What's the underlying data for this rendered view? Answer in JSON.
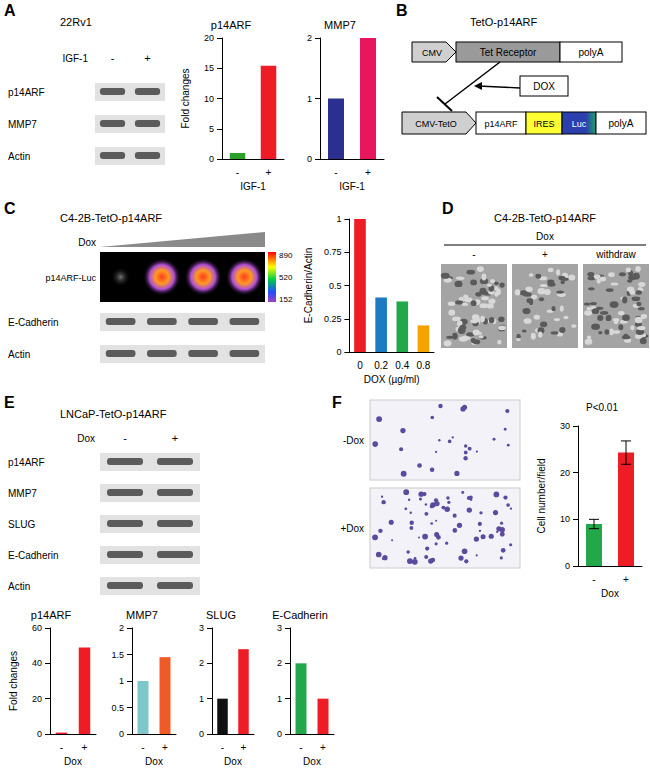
{
  "panels": {
    "A": {
      "letter": "A",
      "title": "22Rv1",
      "condition": "IGF-1",
      "lanes": [
        "-",
        "+"
      ],
      "blots": [
        "p14ARF",
        "MMP7",
        "Actin"
      ]
    },
    "B": {
      "letter": "B",
      "title": "TetO-p14ARF",
      "top_row": [
        "CMV",
        "Tet Receptor",
        "polyA"
      ],
      "inducer": "DOX",
      "bottom_row": [
        "CMV-TetO",
        "p14ARF",
        "IRES",
        "Luc",
        "polyA"
      ]
    },
    "C": {
      "letter": "C",
      "title": "C4-2B-TetO-p14ARF",
      "condition": "Dox",
      "image_label": "p14ARF-Luc",
      "colorbar_ticks": [
        890,
        520,
        152
      ],
      "lanes": 4,
      "blots": [
        "E-Cadherin",
        "Actin"
      ]
    },
    "D": {
      "letter": "D",
      "title": "C4-2B-TetO-p14ARF",
      "condition": "Dox",
      "lanes": [
        "-",
        "+",
        "withdraw"
      ]
    },
    "E": {
      "letter": "E",
      "title": "LNCaP-TetO-p14ARF",
      "condition": "Dox",
      "lanes": [
        "-",
        "+"
      ],
      "blots": [
        "p14ARF",
        "MMP7",
        "SLUG",
        "E-Cadherin",
        "Actin"
      ]
    },
    "F": {
      "letter": "F",
      "rows": [
        "-Dox",
        "+Dox"
      ]
    }
  },
  "chart_data": [
    {
      "type": "bar",
      "title": "p14ARF",
      "y_label": "Fold changes",
      "x_label": "IGF-1",
      "categories": [
        "-",
        "+"
      ],
      "values": [
        1,
        15.4
      ],
      "colors": [
        "#2ca02c",
        "#ee1c25"
      ],
      "ylim": [
        0,
        20
      ],
      "yticks": [
        0,
        5,
        10,
        15,
        20
      ],
      "grid": false
    },
    {
      "type": "bar",
      "title": "MMP7",
      "x_label": "IGF-1",
      "categories": [
        "-",
        "+"
      ],
      "values": [
        1,
        2
      ],
      "colors": [
        "#2b2f8f",
        "#e8175d"
      ],
      "ylim": [
        0,
        2
      ],
      "yticks": [
        0,
        1,
        2
      ],
      "grid": false
    },
    {
      "type": "bar",
      "y_label": "E-Cadherin/Actin",
      "x_label": "DOX (µg/ml)",
      "categories": [
        "0",
        "0.2",
        "0.4",
        "0.8"
      ],
      "values": [
        1,
        0.41,
        0.38,
        0.2
      ],
      "colors": [
        "#ee1c25",
        "#1f7bc1",
        "#22a84a",
        "#f5a300"
      ],
      "ylim": [
        0,
        1
      ],
      "yticks": [
        0,
        0.25,
        0.5,
        0.75,
        1
      ],
      "grid": false
    },
    {
      "type": "bar",
      "title": "p14ARF",
      "y_label": "Fold changes",
      "x_label": "Dox",
      "categories": [
        "-",
        "+"
      ],
      "values": [
        0.8,
        49
      ],
      "colors": [
        "#ee1c25",
        "#ee1c25"
      ],
      "ylim": [
        0,
        60
      ],
      "yticks": [
        0,
        20,
        40,
        60
      ],
      "grid": false
    },
    {
      "type": "bar",
      "title": "MMP7",
      "x_label": "Dox",
      "categories": [
        "-",
        "+"
      ],
      "values": [
        1,
        1.45
      ],
      "colors": [
        "#7cc7c9",
        "#f05a28"
      ],
      "ylim": [
        0,
        2
      ],
      "yticks": [
        0,
        0.5,
        1,
        1.5,
        2
      ],
      "grid": false
    },
    {
      "type": "bar",
      "title": "SLUG",
      "x_label": "Dox",
      "categories": [
        "-",
        "+"
      ],
      "values": [
        1,
        2.4
      ],
      "colors": [
        "#111111",
        "#ee1c25"
      ],
      "ylim": [
        0,
        3
      ],
      "yticks": [
        0,
        1,
        2,
        3
      ],
      "grid": false
    },
    {
      "type": "bar",
      "title": "E-Cadherin",
      "x_label": "Dox",
      "categories": [
        "-",
        "+"
      ],
      "values": [
        2,
        1
      ],
      "colors": [
        "#22a84a",
        "#ee1c25"
      ],
      "ylim": [
        0,
        3
      ],
      "yticks": [
        0,
        1,
        2,
        3
      ],
      "grid": false
    },
    {
      "type": "bar",
      "y_label": "Cell number/field",
      "x_label": "Dox",
      "annotation": "P<0.01",
      "categories": [
        "-",
        "+"
      ],
      "values": [
        9,
        24.3
      ],
      "error": [
        1,
        2.5
      ],
      "colors": [
        "#22a84a",
        "#ee1c25"
      ],
      "ylim": [
        0,
        30
      ],
      "yticks": [
        0,
        10,
        20,
        30
      ],
      "grid": false
    }
  ]
}
